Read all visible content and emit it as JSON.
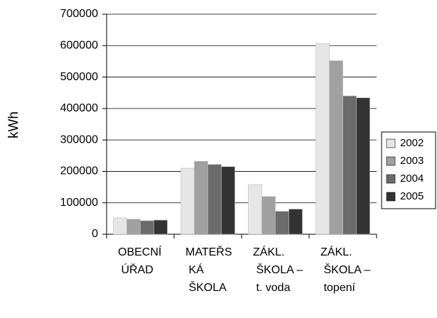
{
  "chart_data": {
    "type": "bar",
    "y_label": "kWh",
    "categories": [
      "OBECNÍ ÚŘAD",
      "MATEŘSKÁ ŠKOLA",
      "ZÁKL. ŠKOLA – t. voda",
      "ZÁKL. ŠKOLA – topení"
    ],
    "series": [
      {
        "name": "2002",
        "color": "#e6e6e6",
        "values": [
          52000,
          210000,
          158000,
          607000
        ]
      },
      {
        "name": "2003",
        "color": "#a0a0a0",
        "values": [
          48000,
          232000,
          120000,
          552000
        ]
      },
      {
        "name": "2004",
        "color": "#6b6b6b",
        "values": [
          43000,
          222000,
          73000,
          440000
        ]
      },
      {
        "name": "2005",
        "color": "#333333",
        "values": [
          45000,
          215000,
          80000,
          434000
        ]
      }
    ],
    "ylim": [
      0,
      700000
    ],
    "yticks": [
      0,
      100000,
      200000,
      300000,
      400000,
      500000,
      600000,
      700000
    ],
    "grid": true,
    "legend": "right"
  }
}
